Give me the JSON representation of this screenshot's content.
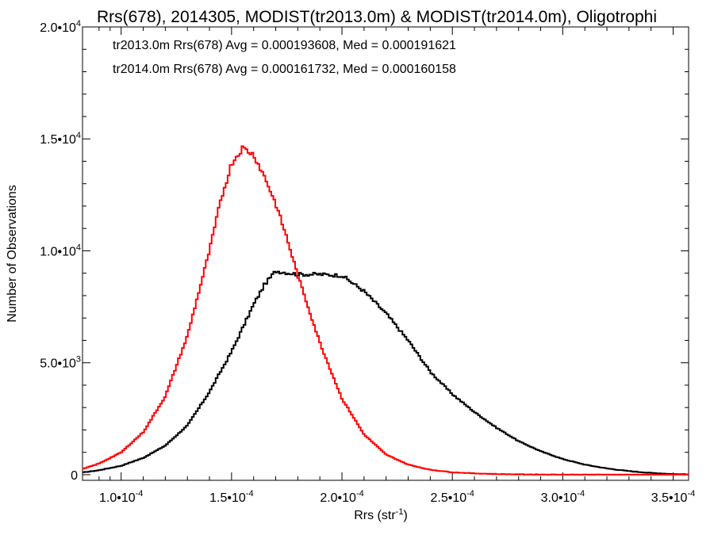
{
  "chart_data": {
    "type": "line",
    "title": "Rrs(678), 2014305, MODIST(tr2013.0m) & MODIST(tr2014.0m), Oligotrophi",
    "xlabel": {
      "base": "Rrs (str",
      "sup": "-1",
      "end": ")"
    },
    "ylabel": "Number of Observations",
    "xlim": [
      8.25e-05,
      0.000357
    ],
    "ylim": [
      -250,
      20000
    ],
    "x_ticks": [
      {
        "value": 0.0001,
        "mant": "1.0•10",
        "exp": "-4"
      },
      {
        "value": 0.00015,
        "mant": "1.5•10",
        "exp": "-4"
      },
      {
        "value": 0.0002,
        "mant": "2.0•10",
        "exp": "-4"
      },
      {
        "value": 0.00025,
        "mant": "2.5•10",
        "exp": "-4"
      },
      {
        "value": 0.0003,
        "mant": "3.0•10",
        "exp": "-4"
      },
      {
        "value": 0.00035,
        "mant": "3.5•10",
        "exp": "-4"
      }
    ],
    "y_ticks": [
      {
        "value": 0,
        "mant": "0",
        "exp": ""
      },
      {
        "value": 5000,
        "mant": "5.0•10",
        "exp": "3"
      },
      {
        "value": 10000,
        "mant": "1.0•10",
        "exp": "4"
      },
      {
        "value": 15000,
        "mant": "1.5•10",
        "exp": "4"
      },
      {
        "value": 20000,
        "mant": "2.0•10",
        "exp": "4"
      }
    ],
    "annotations": [
      {
        "text": "tr2013.0m Rrs(678) Avg = 0.000193608, Med = 0.000191621",
        "color": "#000000"
      },
      {
        "text": "tr2014.0m Rrs(678) Avg = 0.000161732, Med = 0.000160158",
        "color": "#ff0000"
      }
    ],
    "series": [
      {
        "color": "#000000",
        "x": [
          8.25e-05,
          9e-05,
          0.0001,
          0.00011,
          0.00012,
          0.00013,
          0.00014,
          0.00015,
          0.00016,
          0.000165,
          0.00017,
          0.00018,
          0.00019,
          0.0002,
          0.00021,
          0.00022,
          0.00023,
          0.00024,
          0.00025,
          0.00026,
          0.00027,
          0.00028,
          0.00029,
          0.0003,
          0.00031,
          0.00032,
          0.00033,
          0.00034,
          0.00035,
          0.000357
        ],
        "y": [
          100,
          200,
          400,
          750,
          1300,
          2200,
          3700,
          5500,
          7600,
          8500,
          9100,
          8950,
          8950,
          8900,
          8200,
          7200,
          6000,
          4600,
          3600,
          2800,
          2100,
          1500,
          1050,
          700,
          450,
          280,
          160,
          80,
          30,
          15
        ]
      },
      {
        "color": "#ff0000",
        "x": [
          8.25e-05,
          9e-05,
          0.0001,
          0.00011,
          0.00012,
          0.00013,
          0.00014,
          0.000145,
          0.00015,
          0.000155,
          0.00016,
          0.000165,
          0.00017,
          0.000175,
          0.00018,
          0.00019,
          0.0002,
          0.00021,
          0.00022,
          0.00023,
          0.00024,
          0.00025,
          0.00026,
          0.00027,
          0.00028,
          0.0003,
          0.00033,
          0.000357
        ],
        "y": [
          250,
          500,
          1000,
          1900,
          3500,
          6200,
          10000,
          12200,
          13900,
          14600,
          14300,
          13300,
          12100,
          10600,
          8900,
          5900,
          3400,
          1800,
          900,
          450,
          220,
          110,
          60,
          30,
          15,
          5,
          0,
          0
        ]
      }
    ]
  }
}
